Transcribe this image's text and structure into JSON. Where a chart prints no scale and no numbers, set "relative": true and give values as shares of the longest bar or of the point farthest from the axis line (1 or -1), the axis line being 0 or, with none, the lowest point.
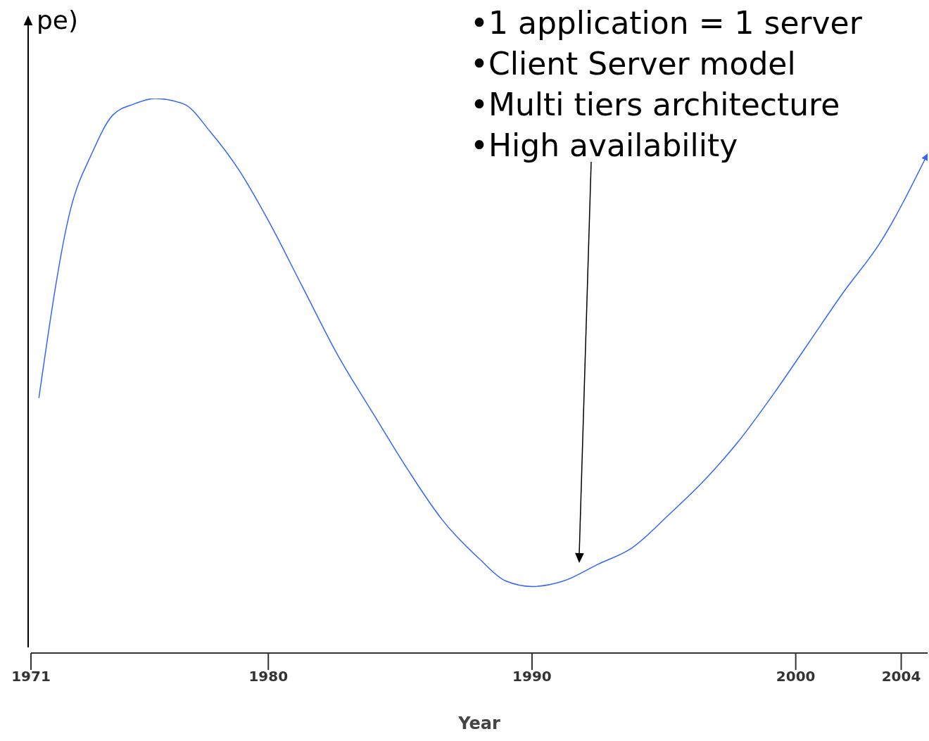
{
  "chart_data": {
    "type": "line",
    "relative": true,
    "xlabel": "Year",
    "ylabel": "pe)",
    "x": [
      1971.3,
      1972.5,
      1973.3,
      1974.1,
      1974.9,
      1975.7,
      1976.8,
      1977.8,
      1978.9,
      1980.0,
      1981.3,
      1982.6,
      1984.0,
      1985.3,
      1986.6,
      1988.0,
      1989.0,
      1990.0,
      1991.2,
      1992.5,
      1993.8,
      1995.2,
      1996.5,
      1997.8,
      1999.2,
      2000.5,
      2001.8,
      2003.2,
      2005.0
    ],
    "series": [
      {
        "color": "#3366ff",
        "values": [
          0.46,
          0.8,
          0.9,
          0.97,
          0.99,
          1.0,
          0.99,
          0.94,
          0.87,
          0.78,
          0.66,
          0.54,
          0.43,
          0.33,
          0.24,
          0.17,
          0.13,
          0.12,
          0.13,
          0.16,
          0.19,
          0.25,
          0.31,
          0.38,
          0.47,
          0.56,
          0.65,
          0.74,
          0.9
        ]
      }
    ],
    "xlim": [
      1971,
      2005
    ],
    "xticks": [
      1971,
      1980,
      1990,
      2000,
      2004
    ],
    "annotations": [
      "•1 application = 1 server\n•Client Server model\n•Multi tiers architecture\n•High availability"
    ],
    "marker": "none",
    "line_style": "solid"
  }
}
